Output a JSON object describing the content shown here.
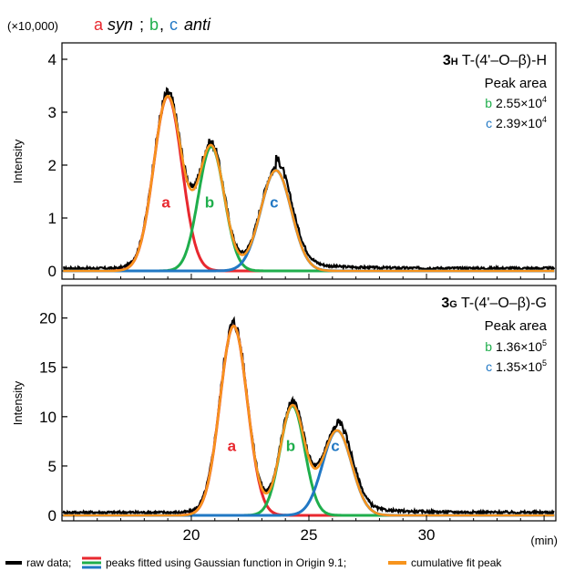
{
  "header": {
    "multiplier": "(×10,000)",
    "legend_a": "a",
    "legend_syn": "syn",
    "legend_sep1": ";",
    "legend_b": "b",
    "legend_comma": ",",
    "legend_c": "c",
    "legend_anti": "anti"
  },
  "colors": {
    "a": "#e8282f",
    "b": "#1fae4c",
    "c": "#2178c4",
    "cumulative": "#f7941d",
    "raw": "#000000"
  },
  "footer": {
    "raw_label": "raw data;",
    "peaks_label": "peaks fitted using Gaussian function in Origin 9.1;",
    "cumulative_label": "cumulative fit peak"
  },
  "chart_data": [
    {
      "type": "line",
      "panel_title_bold": "3",
      "panel_title_sub": "H",
      "panel_title_rest": " T-(4'–O–β)-H",
      "ylabel": "Intensity",
      "ylim": [
        0,
        4
      ],
      "yticks": [
        0,
        1,
        2,
        3,
        4
      ],
      "xlim": [
        14.5,
        35.5
      ],
      "peak_area_label": "Peak area",
      "peak_areas": [
        {
          "label": "b",
          "value": "2.55×10",
          "exp": "4"
        },
        {
          "label": "c",
          "value": "2.39×10",
          "exp": "4"
        }
      ],
      "peaks": [
        {
          "name": "a",
          "center": 19.0,
          "height": 3.3,
          "sigma": 0.6
        },
        {
          "name": "b",
          "center": 20.85,
          "height": 2.35,
          "sigma": 0.55
        },
        {
          "name": "c",
          "center": 23.6,
          "height": 1.9,
          "sigma": 0.65
        }
      ],
      "baseline": 0.05,
      "peak_labels_y": 1.2
    },
    {
      "type": "line",
      "panel_title_bold": "3",
      "panel_title_sub": "G",
      "panel_title_rest": " T-(4'–O–β)-G",
      "ylabel": "Intensity",
      "ylim": [
        0,
        22
      ],
      "yticks": [
        0,
        5,
        10,
        15,
        20
      ],
      "xlim": [
        14.5,
        35.5
      ],
      "xticks": [
        20,
        25,
        30
      ],
      "xlabel": "(min)",
      "peak_area_label": "Peak area",
      "peak_areas": [
        {
          "label": "b",
          "value": "1.36×10",
          "exp": "5"
        },
        {
          "label": "c",
          "value": "1.35×10",
          "exp": "5"
        }
      ],
      "peaks": [
        {
          "name": "a",
          "center": 21.8,
          "height": 19.2,
          "sigma": 0.58
        },
        {
          "name": "b",
          "center": 24.3,
          "height": 11.1,
          "sigma": 0.52
        },
        {
          "name": "c",
          "center": 26.2,
          "height": 8.6,
          "sigma": 0.62
        }
      ],
      "baseline": 0.3,
      "peak_labels_y": 6.5
    }
  ]
}
